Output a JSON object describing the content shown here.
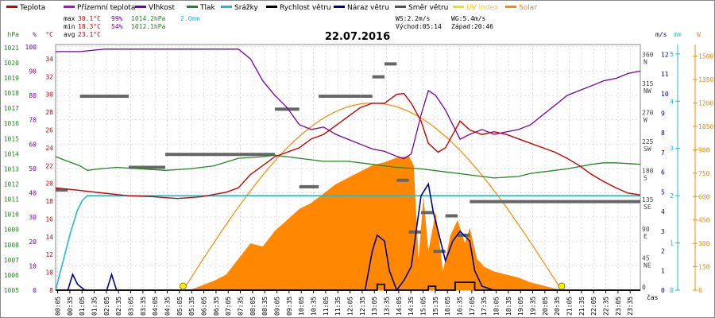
{
  "chart_data": {
    "type": "line",
    "title": "22.07.2016",
    "x_axis_label": "čas",
    "legend": [
      {
        "label": "Teplota",
        "color": "#cc0000"
      },
      {
        "label": "Přízemní teplota",
        "color": "#cc00cc"
      },
      {
        "label": "Vlhkost",
        "color": "#7700aa"
      },
      {
        "label": "Tlak",
        "color": "#228822"
      },
      {
        "label": "Srážky",
        "color": "#22bbcc"
      },
      {
        "label": "Rychlost větru",
        "color": "#000000"
      },
      {
        "label": "Náraz větru",
        "color": "#000099"
      },
      {
        "label": "Směr větru",
        "color": "#555555"
      },
      {
        "label": "UV index",
        "color": "#ffdd00"
      },
      {
        "label": "Solar",
        "color": "#ff8800"
      }
    ],
    "stats": {
      "max": {
        "label": "max",
        "temp": "30.1°C",
        "hum": "99%",
        "press": "1014.2hPa",
        "rain": "2.0mm"
      },
      "min": {
        "label": "min",
        "temp": "18.3°C",
        "hum": "54%",
        "press": "1012.1hPa"
      },
      "avg": {
        "label": "avg",
        "temp": "23.1°C"
      }
    },
    "wind_info": {
      "ws": "WS:2.2m/s",
      "wg": "WG:5.4m/s",
      "sunrise": "Východ:05:14",
      "sunset": "Západ:20:46"
    },
    "axes": {
      "hpa": {
        "title": "hPa",
        "ticks": [
          "1005",
          "1006",
          "1007",
          "1008",
          "1009",
          "1010",
          "1011",
          "1012",
          "1013",
          "1014",
          "1015",
          "1016",
          "1017",
          "1018",
          "1019",
          "1020",
          "1021"
        ]
      },
      "pct": {
        "title": "%",
        "ticks": [
          "0",
          "10",
          "20",
          "30",
          "40",
          "50",
          "60",
          "70",
          "80",
          "90",
          "100"
        ]
      },
      "temp": {
        "title": "°C",
        "ticks": [
          "8",
          "10",
          "12",
          "14",
          "16",
          "18",
          "20",
          "22",
          "24",
          "26",
          "28",
          "30",
          "32",
          "34"
        ]
      },
      "dir": {
        "ticks": [
          {
            "deg": "0",
            "label": ""
          },
          {
            "deg": "45",
            "label": "NE"
          },
          {
            "deg": "90",
            "label": "E"
          },
          {
            "deg": "135",
            "label": "SE"
          },
          {
            "deg": "180",
            "label": "S"
          },
          {
            "deg": "225",
            "label": "SW"
          },
          {
            "deg": "270",
            "label": "W"
          },
          {
            "deg": "315",
            "label": "NW"
          },
          {
            "deg": "360",
            "label": "N"
          }
        ]
      },
      "ms": {
        "title": "m/s",
        "ticks": [
          "0",
          "1",
          "2",
          "3",
          "4",
          "5",
          "6",
          "7",
          "8",
          "9",
          "10",
          "11",
          "12"
        ]
      },
      "mm": {
        "title": "mm",
        "ticks": [
          "0",
          "1",
          "2",
          "3",
          "4",
          "5"
        ]
      },
      "w": {
        "title": "W",
        "ticks": [
          "0",
          "150",
          "300",
          "450",
          "600",
          "750",
          "900",
          "1050",
          "1200",
          "1350",
          "1500"
        ]
      }
    },
    "time_ticks": [
      "00:05",
      "00:35",
      "01:05",
      "01:35",
      "02:05",
      "02:35",
      "03:05",
      "03:35",
      "04:05",
      "04:35",
      "05:05",
      "05:35",
      "06:05",
      "06:35",
      "07:05",
      "07:35",
      "08:05",
      "08:35",
      "09:05",
      "09:35",
      "10:05",
      "10:35",
      "11:05",
      "11:35",
      "12:05",
      "12:35",
      "13:05",
      "13:35",
      "14:05",
      "14:35",
      "15:05",
      "15:35",
      "16:05",
      "16:35",
      "17:05",
      "17:35",
      "18:05",
      "18:35",
      "19:05",
      "19:35",
      "20:05",
      "20:35",
      "21:05",
      "21:35",
      "22:05",
      "22:35",
      "23:05",
      "23:35"
    ],
    "series": {
      "temperature": {
        "unit": "°C",
        "points": [
          [
            0.0,
            19.5
          ],
          [
            1.0,
            19.2
          ],
          [
            2.0,
            18.9
          ],
          [
            3.0,
            18.6
          ],
          [
            4.0,
            18.5
          ],
          [
            5.0,
            18.3
          ],
          [
            6.0,
            18.5
          ],
          [
            7.0,
            19.0
          ],
          [
            7.5,
            19.5
          ],
          [
            8.0,
            21.0
          ],
          [
            8.5,
            22.0
          ],
          [
            9.0,
            23.0
          ],
          [
            9.5,
            23.5
          ],
          [
            10.0,
            24.0
          ],
          [
            10.5,
            25.0
          ],
          [
            11.0,
            25.5
          ],
          [
            11.5,
            26.5
          ],
          [
            12.0,
            27.5
          ],
          [
            12.5,
            28.5
          ],
          [
            13.0,
            29.0
          ],
          [
            13.5,
            29.0
          ],
          [
            14.0,
            30.0
          ],
          [
            14.3,
            30.1
          ],
          [
            14.6,
            29.0
          ],
          [
            15.0,
            27.0
          ],
          [
            15.3,
            24.5
          ],
          [
            15.7,
            23.5
          ],
          [
            16.0,
            24.0
          ],
          [
            16.3,
            25.5
          ],
          [
            16.6,
            27.0
          ],
          [
            17.0,
            26.0
          ],
          [
            17.5,
            25.5
          ],
          [
            18.0,
            25.8
          ],
          [
            18.5,
            25.5
          ],
          [
            19.0,
            25.0
          ],
          [
            19.5,
            24.5
          ],
          [
            20.0,
            24.0
          ],
          [
            20.5,
            23.5
          ],
          [
            21.0,
            22.8
          ],
          [
            21.5,
            22.0
          ],
          [
            22.0,
            21.0
          ],
          [
            22.5,
            20.2
          ],
          [
            23.0,
            19.5
          ],
          [
            23.5,
            18.9
          ],
          [
            24.0,
            18.7
          ]
        ]
      },
      "humidity": {
        "unit": "%",
        "points": [
          [
            0.0,
            98
          ],
          [
            1.0,
            98
          ],
          [
            2.0,
            99
          ],
          [
            3.0,
            99
          ],
          [
            4.0,
            99
          ],
          [
            5.0,
            99
          ],
          [
            6.0,
            99
          ],
          [
            7.0,
            99
          ],
          [
            7.5,
            99
          ],
          [
            8.0,
            95
          ],
          [
            8.5,
            86
          ],
          [
            9.0,
            80
          ],
          [
            9.5,
            75
          ],
          [
            10.0,
            68
          ],
          [
            10.5,
            66
          ],
          [
            11.0,
            67
          ],
          [
            11.5,
            64
          ],
          [
            12.0,
            62
          ],
          [
            12.5,
            60
          ],
          [
            13.0,
            58
          ],
          [
            13.5,
            57
          ],
          [
            14.0,
            55
          ],
          [
            14.3,
            54
          ],
          [
            14.6,
            56
          ],
          [
            15.0,
            72
          ],
          [
            15.3,
            82
          ],
          [
            15.6,
            80
          ],
          [
            16.0,
            74
          ],
          [
            16.3,
            68
          ],
          [
            16.6,
            62
          ],
          [
            17.0,
            64
          ],
          [
            17.5,
            66
          ],
          [
            18.0,
            64
          ],
          [
            18.5,
            65
          ],
          [
            19.0,
            66
          ],
          [
            19.5,
            68
          ],
          [
            20.0,
            72
          ],
          [
            20.5,
            76
          ],
          [
            21.0,
            80
          ],
          [
            21.5,
            82
          ],
          [
            22.0,
            84
          ],
          [
            22.5,
            86
          ],
          [
            23.0,
            87
          ],
          [
            23.5,
            89
          ],
          [
            24.0,
            90
          ]
        ]
      },
      "pressure": {
        "unit": "hPa",
        "points": [
          [
            0.0,
            1013.8
          ],
          [
            0.5,
            1013.5
          ],
          [
            1.0,
            1013.2
          ],
          [
            1.3,
            1012.9
          ],
          [
            1.8,
            1013.0
          ],
          [
            2.5,
            1013.1
          ],
          [
            3.5,
            1013.0
          ],
          [
            4.5,
            1012.9
          ],
          [
            5.5,
            1013.0
          ],
          [
            6.5,
            1013.2
          ],
          [
            7.5,
            1013.7
          ],
          [
            8.5,
            1013.8
          ],
          [
            9.0,
            1013.9
          ],
          [
            10.0,
            1013.7
          ],
          [
            11.0,
            1013.5
          ],
          [
            12.0,
            1013.5
          ],
          [
            13.0,
            1013.3
          ],
          [
            14.0,
            1013.1
          ],
          [
            15.0,
            1013.0
          ],
          [
            16.0,
            1012.8
          ],
          [
            17.0,
            1012.6
          ],
          [
            18.0,
            1012.4
          ],
          [
            19.0,
            1012.5
          ],
          [
            19.5,
            1012.7
          ],
          [
            20.0,
            1012.8
          ],
          [
            21.0,
            1013.0
          ],
          [
            22.0,
            1013.3
          ],
          [
            22.5,
            1013.4
          ],
          [
            23.0,
            1013.4
          ],
          [
            24.0,
            1013.3
          ]
        ]
      },
      "rain": {
        "unit": "mm",
        "points": [
          [
            0.0,
            0.0
          ],
          [
            0.3,
            0.6
          ],
          [
            0.6,
            1.2
          ],
          [
            0.9,
            1.7
          ],
          [
            1.1,
            1.9
          ],
          [
            1.3,
            2.0
          ],
          [
            24.0,
            2.0
          ]
        ]
      },
      "gust": {
        "unit": "m/s",
        "points": [
          [
            0.0,
            0.0
          ],
          [
            0.5,
            0.0
          ],
          [
            0.7,
            0.8
          ],
          [
            0.9,
            0.3
          ],
          [
            1.2,
            0.0
          ],
          [
            2.1,
            0.0
          ],
          [
            2.3,
            0.8
          ],
          [
            2.5,
            0.0
          ],
          [
            12.7,
            0.0
          ],
          [
            13.0,
            2.0
          ],
          [
            13.2,
            2.8
          ],
          [
            13.5,
            2.5
          ],
          [
            13.7,
            1.0
          ],
          [
            14.0,
            0.0
          ],
          [
            14.3,
            0.5
          ],
          [
            14.6,
            1.2
          ],
          [
            15.0,
            4.8
          ],
          [
            15.3,
            5.4
          ],
          [
            15.5,
            4.0
          ],
          [
            15.8,
            2.5
          ],
          [
            16.0,
            1.5
          ],
          [
            16.3,
            2.5
          ],
          [
            16.6,
            3.0
          ],
          [
            17.0,
            2.5
          ],
          [
            17.2,
            1.0
          ],
          [
            17.5,
            0.2
          ],
          [
            18.0,
            0.0
          ],
          [
            24.0,
            0.0
          ]
        ]
      },
      "wind_speed": {
        "unit": "m/s",
        "points": [
          [
            0.0,
            0.0
          ],
          [
            13.0,
            0.0
          ],
          [
            13.2,
            0.3
          ],
          [
            13.5,
            0.0
          ],
          [
            15.0,
            0.0
          ],
          [
            15.3,
            0.2
          ],
          [
            15.6,
            0.0
          ],
          [
            16.2,
            0.0
          ],
          [
            16.4,
            0.4
          ],
          [
            17.0,
            0.4
          ],
          [
            17.2,
            0.0
          ],
          [
            24.0,
            0.0
          ]
        ]
      },
      "solar": {
        "unit": "W/m2",
        "points": [
          [
            0.0,
            0
          ],
          [
            5.5,
            0
          ],
          [
            6.0,
            30
          ],
          [
            6.5,
            60
          ],
          [
            7.0,
            100
          ],
          [
            7.5,
            200
          ],
          [
            8.0,
            300
          ],
          [
            8.5,
            280
          ],
          [
            9.0,
            380
          ],
          [
            9.5,
            450
          ],
          [
            10.0,
            520
          ],
          [
            10.5,
            560
          ],
          [
            11.0,
            620
          ],
          [
            11.5,
            680
          ],
          [
            12.0,
            720
          ],
          [
            12.5,
            760
          ],
          [
            13.0,
            800
          ],
          [
            13.5,
            820
          ],
          [
            14.0,
            850
          ],
          [
            14.5,
            860
          ],
          [
            14.7,
            800
          ],
          [
            14.9,
            200
          ],
          [
            15.1,
            600
          ],
          [
            15.3,
            250
          ],
          [
            15.6,
            500
          ],
          [
            15.9,
            120
          ],
          [
            16.2,
            350
          ],
          [
            16.5,
            450
          ],
          [
            16.8,
            300
          ],
          [
            17.0,
            400
          ],
          [
            17.3,
            200
          ],
          [
            17.6,
            150
          ],
          [
            18.0,
            120
          ],
          [
            18.5,
            100
          ],
          [
            19.0,
            80
          ],
          [
            19.5,
            50
          ],
          [
            20.0,
            30
          ],
          [
            20.5,
            10
          ],
          [
            21.0,
            0
          ],
          [
            24.0,
            0
          ]
        ]
      },
      "solar_theoretical": {
        "unit": "W/m2",
        "sunrise_h": 5.23,
        "sunset_h": 20.77,
        "peak_w": 1200
      },
      "uv_markers": {
        "hours": [
          5.23,
          20.77
        ]
      },
      "wind_direction_segments": {
        "unit": "deg",
        "segments": [
          [
            0.0,
            0.5,
            155
          ],
          [
            1.0,
            3.0,
            300
          ],
          [
            3.0,
            4.5,
            190
          ],
          [
            4.5,
            9.0,
            210
          ],
          [
            9.0,
            10.0,
            280
          ],
          [
            10.0,
            10.8,
            160
          ],
          [
            10.8,
            12.5,
            300
          ],
          [
            12.5,
            13.0,
            300
          ],
          [
            13.0,
            13.5,
            330
          ],
          [
            13.5,
            14.0,
            350
          ],
          [
            14.0,
            14.5,
            170
          ],
          [
            14.5,
            15.0,
            90
          ],
          [
            15.0,
            15.5,
            120
          ],
          [
            15.5,
            16.0,
            60
          ],
          [
            16.0,
            16.5,
            115
          ],
          [
            16.5,
            17.0,
            85
          ],
          [
            17.0,
            24.0,
            137
          ]
        ]
      }
    }
  }
}
